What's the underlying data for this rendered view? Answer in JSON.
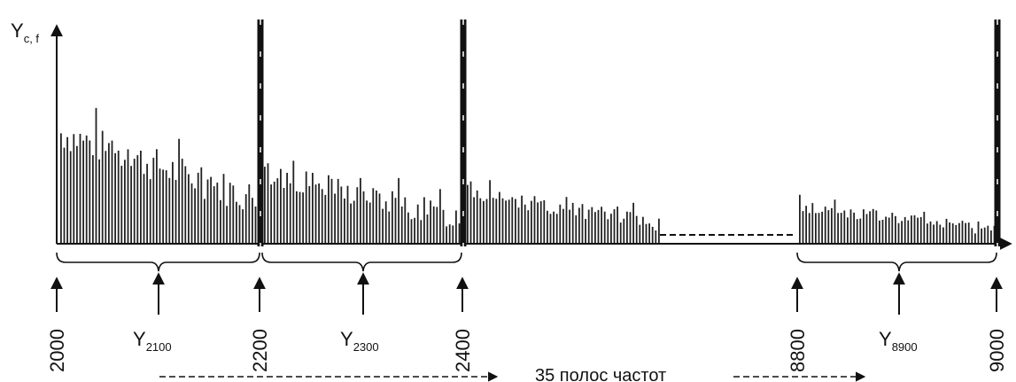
{
  "y_axis": {
    "symbol": "Y",
    "subscript": "c, f"
  },
  "frequency_marks": [
    "2000",
    "2200",
    "2400",
    "8800",
    "9000"
  ],
  "band_labels": [
    {
      "symbol": "Y",
      "subscript": "2100"
    },
    {
      "symbol": "Y",
      "subscript": "2300"
    },
    {
      "symbol": "Y",
      "subscript": "8900"
    }
  ],
  "bottom_note": "35 полос частот",
  "colors": {
    "ink": "#111111",
    "background": "#ffffff",
    "bar": "#222222"
  }
}
